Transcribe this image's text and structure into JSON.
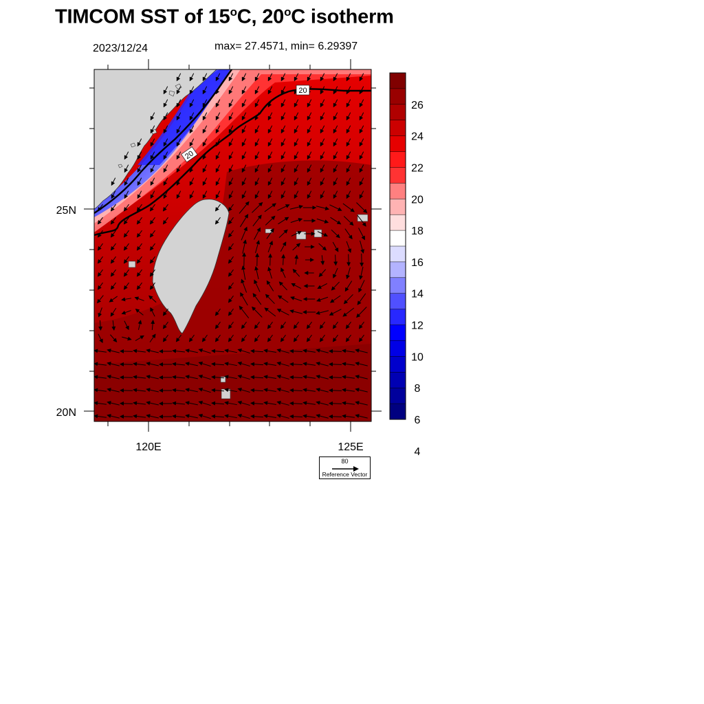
{
  "title": {
    "main_prefix": "TIMCOM SST of 15",
    "degree_1": "o",
    "mid": "C, 20",
    "degree_2": "o",
    "suffix": "C isotherm"
  },
  "date": "2023/12/24",
  "stats": "max= 27.4571, min= 6.29397",
  "axes": {
    "lat_labels": [
      "25N",
      "20N"
    ],
    "lon_labels": [
      "120E",
      "125E"
    ]
  },
  "contour_labels": [
    "20",
    "20"
  ],
  "colorbar": {
    "tick_labels": [
      "26",
      "24",
      "22",
      "20",
      "18",
      "16",
      "14",
      "12",
      "10",
      "8",
      "6",
      "4"
    ],
    "colors": [
      "#800000",
      "#990000",
      "#b00000",
      "#cc0000",
      "#e60000",
      "#ff1a1a",
      "#ff3333",
      "#ff8080",
      "#ffb3b3",
      "#ffdede",
      "#ffffff",
      "#dcdcff",
      "#b3b3ff",
      "#8080ff",
      "#5050ff",
      "#2828ff",
      "#0000ff",
      "#0000e6",
      "#0000cc",
      "#0000b3",
      "#00009c",
      "#000080"
    ]
  },
  "reference_vector": {
    "magnitude": "80",
    "label": "Reference Vector"
  },
  "colors": {
    "land": "#d3d3d3",
    "isotherm": "#000000"
  }
}
